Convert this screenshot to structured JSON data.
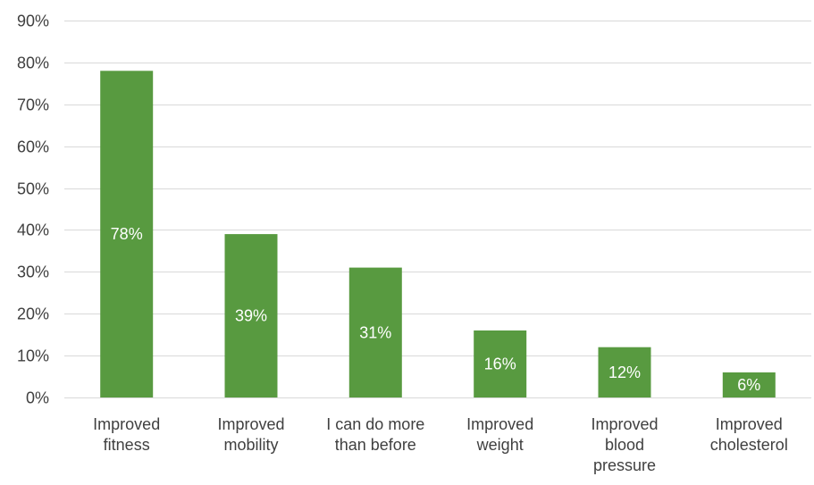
{
  "chart_data": {
    "type": "bar",
    "title": "",
    "xlabel": "",
    "ylabel": "",
    "ylim": [
      0,
      90
    ],
    "y_tick_step": 10,
    "y_tick_format": "percent",
    "grid": true,
    "legend": "none",
    "bar_color": "#589a40",
    "categories": [
      [
        "Improved",
        "fitness"
      ],
      [
        "Improved",
        "mobility"
      ],
      [
        "I can do more",
        "than before"
      ],
      [
        "Improved",
        "weight"
      ],
      [
        "Improved",
        "blood",
        "pressure"
      ],
      [
        "Improved",
        "cholesterol"
      ]
    ],
    "values": [
      78,
      39,
      31,
      16,
      12,
      6
    ],
    "data_labels": [
      "78%",
      "39%",
      "31%",
      "16%",
      "12%",
      "6%"
    ]
  }
}
